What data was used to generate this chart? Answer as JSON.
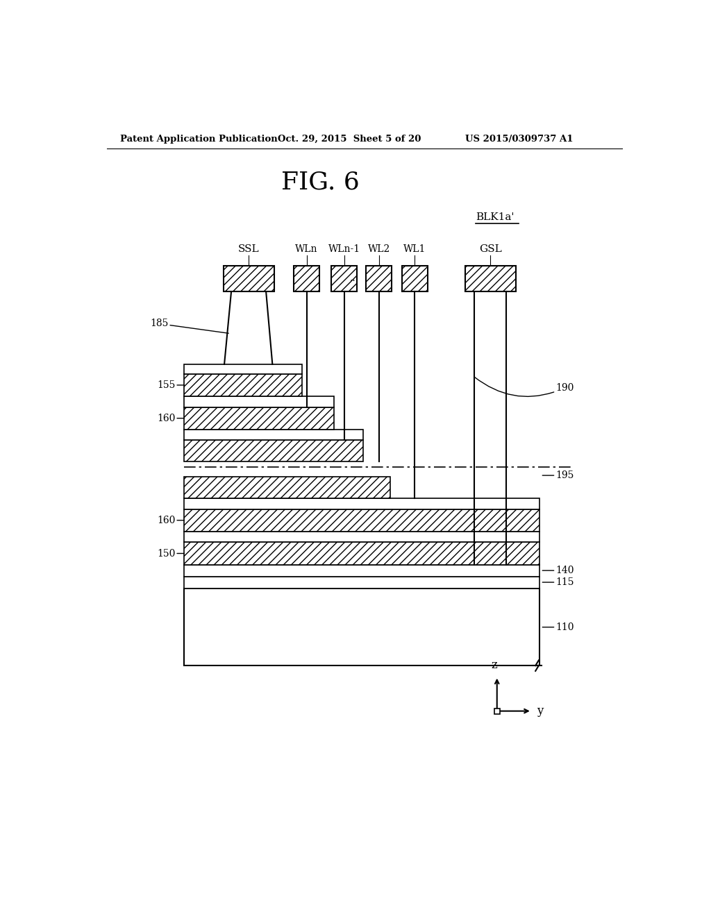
{
  "title": "FIG. 6",
  "header_left": "Patent Application Publication",
  "header_mid": "Oct. 29, 2015  Sheet 5 of 20",
  "header_right": "US 2015/0309737 A1",
  "blk_label": "BLK1a’",
  "fig_bg": "#ffffff"
}
